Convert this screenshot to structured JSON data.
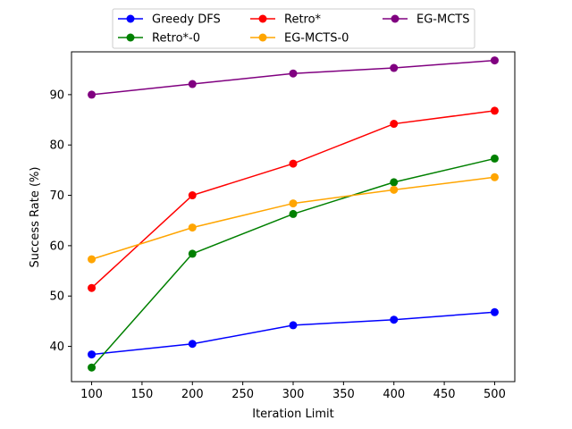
{
  "chart_data": {
    "type": "line",
    "title": "",
    "xlabel": "Iteration Limit",
    "ylabel": "Success Rate (%)",
    "x": [
      100,
      200,
      300,
      400,
      500
    ],
    "xlim": [
      80,
      520
    ],
    "ylim": [
      33,
      98.5
    ],
    "xticks": [
      100,
      150,
      200,
      250,
      300,
      350,
      400,
      450,
      500
    ],
    "yticks": [
      40,
      50,
      60,
      70,
      80,
      90
    ],
    "grid": false,
    "legend": {
      "placement": "top-center",
      "columns": 3
    },
    "series": [
      {
        "name": "Greedy DFS",
        "color": "#0000ff",
        "values": [
          38.4,
          40.5,
          44.2,
          45.3,
          46.8
        ]
      },
      {
        "name": "Retro*-0",
        "color": "#008000",
        "values": [
          35.8,
          58.4,
          66.3,
          72.6,
          77.3
        ]
      },
      {
        "name": "Retro*",
        "color": "#ff0000",
        "values": [
          51.6,
          70.0,
          76.3,
          84.2,
          86.8
        ]
      },
      {
        "name": "EG-MCTS-0",
        "color": "#ffa500",
        "values": [
          57.3,
          63.6,
          68.4,
          71.1,
          73.6
        ]
      },
      {
        "name": "EG-MCTS",
        "color": "#800080",
        "values": [
          90.0,
          92.1,
          94.2,
          95.3,
          96.8
        ]
      }
    ]
  }
}
